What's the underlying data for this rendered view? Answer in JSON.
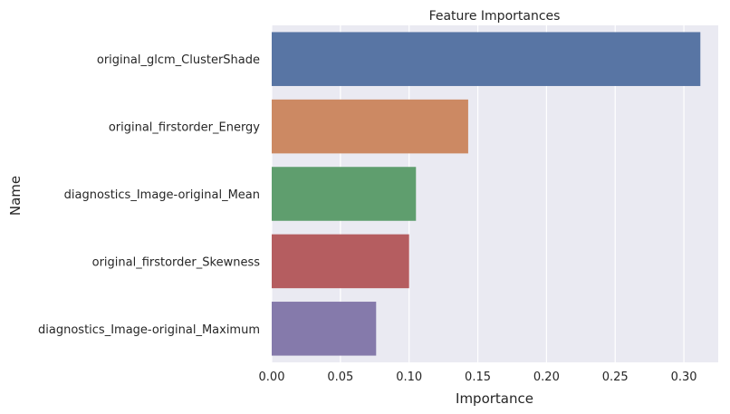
{
  "chart_data": {
    "type": "bar",
    "orientation": "horizontal",
    "title": "Feature Importances",
    "xlabel": "Importance",
    "ylabel": "Name",
    "categories": [
      "original_glcm_ClusterShade",
      "original_firstorder_Energy",
      "diagnostics_Image-original_Mean",
      "original_firstorder_Skewness",
      "diagnostics_Image-original_Maximum"
    ],
    "values": [
      0.312,
      0.143,
      0.105,
      0.1,
      0.076
    ],
    "colors": [
      "#5875a4",
      "#cc8963",
      "#5f9e6e",
      "#b55d60",
      "#857aab"
    ],
    "xlim": [
      0,
      0.325
    ],
    "xticks": [
      0.0,
      0.05,
      0.1,
      0.15,
      0.2,
      0.25,
      0.3
    ],
    "xtick_labels": [
      "0.00",
      "0.05",
      "0.10",
      "0.15",
      "0.20",
      "0.25",
      "0.30"
    ],
    "grid": true,
    "background": "#eaeaf2"
  }
}
